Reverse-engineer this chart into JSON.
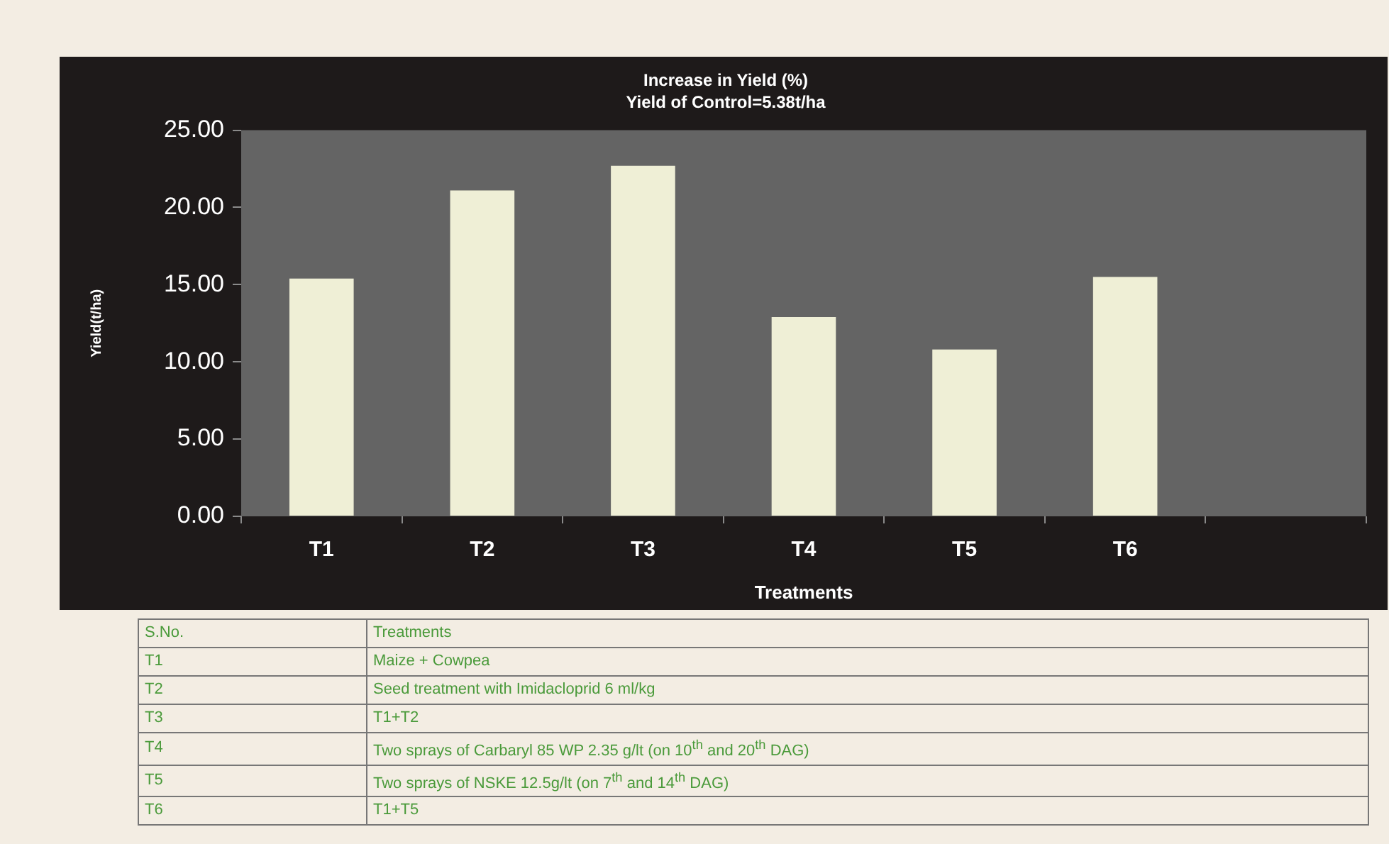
{
  "chart_data": {
    "type": "bar",
    "title": "Increase in Yield (%)",
    "subtitle": "Yield of Control=5.38t/ha",
    "xlabel": "Treatments",
    "ylabel": "Yield(t/ha)",
    "categories": [
      "T1",
      "T2",
      "T3",
      "T4",
      "T5",
      "T6",
      null
    ],
    "values": [
      15.4,
      21.1,
      22.7,
      12.9,
      10.8,
      15.5,
      null
    ],
    "color": "#efefd6",
    "ylim": [
      0,
      25
    ],
    "yticks": [
      {
        "value": 0,
        "label": "0.00"
      },
      {
        "value": 5,
        "label": "5.00"
      },
      {
        "value": 10,
        "label": "10.00"
      },
      {
        "value": 15,
        "label": "15.00"
      },
      {
        "value": 20,
        "label": "20.00"
      },
      {
        "value": 25,
        "label": "25.00"
      }
    ],
    "grid": false,
    "legend": false,
    "annotations": [
      "S.No.",
      "Treatments",
      "T1",
      "Maize + Cowpea",
      "T2",
      "Seed treatment with Imidacloprid 6 ml/kg",
      "T3",
      "T1+T2",
      "T4",
      "Two sprays of Carbaryl 85 WP 2.35 g/lt (on 10$^{th}$ and 20$^{th}$ DAG)",
      "T5",
      "Two sprays of NSKE 12.5g/lt (on 7$^{th}$ and 14$^{th}$ DAG)",
      "T6",
      "T1+T5"
    ]
  }
}
